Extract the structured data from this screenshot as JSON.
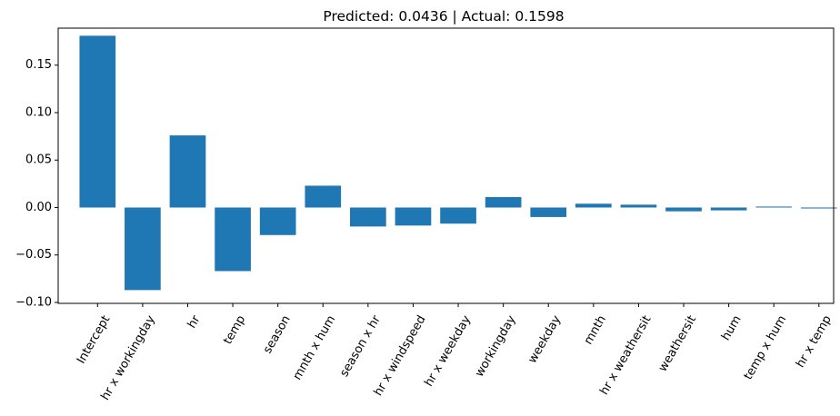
{
  "chart_data": {
    "type": "bar",
    "title": "Predicted: 0.0436 | Actual: 0.1598",
    "xlabel": "",
    "ylabel": "",
    "categories": [
      "Intercept",
      "hr x workingday",
      "hr",
      "temp",
      "season",
      "mnth x hum",
      "season x hr",
      "hr x windspeed",
      "hr x weekday",
      "workingday",
      "weekday",
      "mnth",
      "hr x weathersit",
      "weathersit",
      "hum",
      "temp x hum",
      "hr x temp"
    ],
    "values": [
      0.181,
      -0.087,
      0.076,
      -0.067,
      -0.029,
      0.023,
      -0.02,
      -0.019,
      -0.017,
      0.011,
      -0.01,
      0.004,
      0.003,
      -0.004,
      -0.003,
      0.001,
      -0.001
    ],
    "ylim": [
      -0.101,
      0.189
    ],
    "yticks": [
      -0.1,
      -0.05,
      0.0,
      0.05,
      0.1,
      0.15
    ],
    "ytick_labels": [
      "−0.10",
      "−0.05",
      "0.00",
      "0.05",
      "0.10",
      "0.15"
    ],
    "bar_color": "#1f77b4",
    "grid": false,
    "legend": "none"
  }
}
